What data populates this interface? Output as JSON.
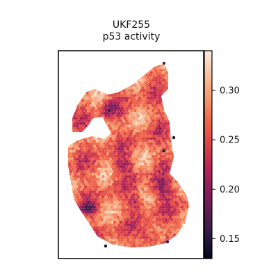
{
  "chart_data": {
    "type": "heatmap",
    "subtype": "spatial-spot-map",
    "title": "UKF255",
    "subtitle": "p53 activity",
    "xlabel": "",
    "ylabel": "",
    "axes_ticks_visible": false,
    "grid": false,
    "colormap": "rocket",
    "colormap_stops": [
      "#03051a",
      "#2b1c41",
      "#5c1e52",
      "#8c1d5a",
      "#b82655",
      "#dd4449",
      "#f0674a",
      "#f59a6e",
      "#f7c2a1",
      "#faebdd"
    ],
    "colorbar": {
      "position": "right",
      "vmin": 0.13,
      "vmax": 0.34,
      "ticks": [
        0.15,
        0.2,
        0.25,
        0.3
      ],
      "tick_labels": [
        "0.15",
        "0.20",
        "0.25",
        "0.30"
      ]
    },
    "value_summary": {
      "typical": 0.27,
      "min_observed": 0.13,
      "max_observed": 0.33
    }
  }
}
